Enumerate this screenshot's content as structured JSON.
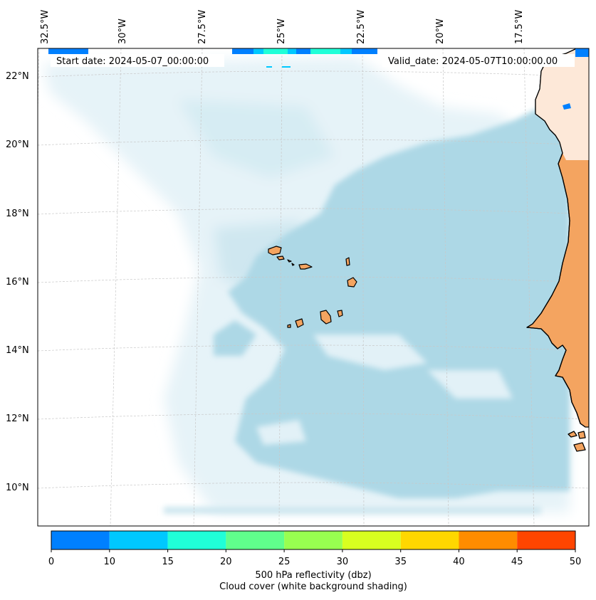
{
  "header": {
    "start_date": "Start date: 2024-05-07_00:00:00",
    "valid_date": "Valid_date: 2024-05-07T10:00:00.00"
  },
  "longitude_labels": [
    "32.5°W",
    "30°W",
    "27.5°W",
    "25°W",
    "22.5°W",
    "20°W",
    "17.5°W"
  ],
  "latitude_labels": [
    "22°N",
    "20°N",
    "18°N",
    "16°N",
    "14°N",
    "12°N",
    "10°N"
  ],
  "colors": {
    "ocean_cloud": "#add8e6",
    "land": "#f4a460",
    "coast": "#000000",
    "grid": "#c8c8c8"
  },
  "colorbar": {
    "title": "500 hPa reflectivity (dbz)",
    "subtitle": "Cloud cover (white background shading)",
    "ticks": [
      "0",
      "10",
      "15",
      "20",
      "25",
      "30",
      "35",
      "40",
      "45",
      "50"
    ],
    "colors": [
      "#0080ff",
      "#00c8ff",
      "#20ffd8",
      "#60ff8c",
      "#98ff50",
      "#d8ff20",
      "#ffd700",
      "#ff8c00",
      "#ff4500"
    ]
  }
}
